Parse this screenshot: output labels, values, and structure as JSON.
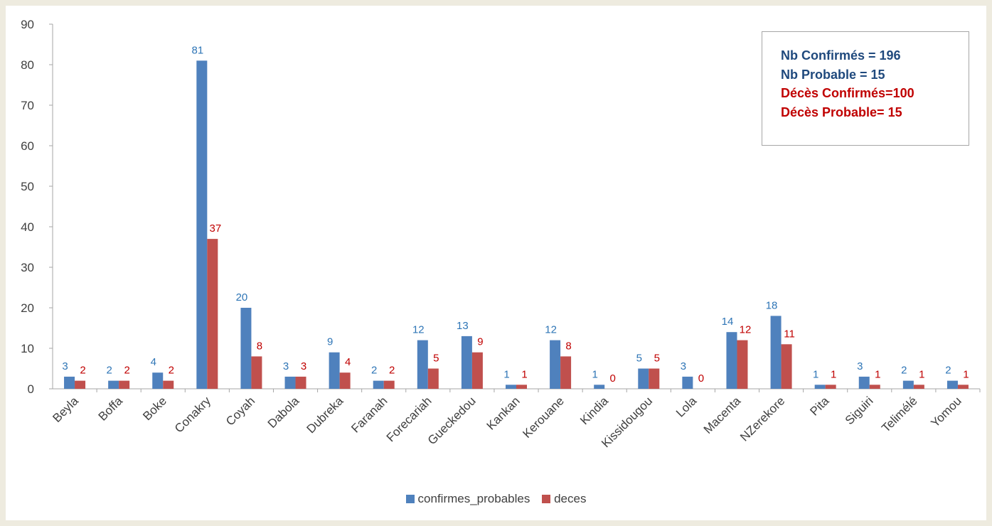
{
  "chart_data": {
    "type": "bar",
    "categories": [
      "Beyla",
      "Boffa",
      "Boke",
      "Conakry",
      "Coyah",
      "Dabola",
      "Dubreka",
      "Faranah",
      "Forecariah",
      "Gueckedou",
      "Kankan",
      "Kerouane",
      "Kindia",
      "Kissidougou",
      "Lola",
      "Macenta",
      "NZerekore",
      "Pita",
      "Siguiri",
      "Telimélé",
      "Yomou"
    ],
    "series": [
      {
        "name": "confirmes_probables",
        "color": "#4f81bd",
        "label_color": "#2e75b6",
        "values": [
          3,
          2,
          4,
          81,
          20,
          3,
          9,
          2,
          12,
          13,
          1,
          12,
          1,
          5,
          3,
          14,
          18,
          1,
          3,
          2,
          2
        ]
      },
      {
        "name": "deces",
        "color": "#c0504d",
        "label_color": "#c00000",
        "values": [
          2,
          2,
          2,
          37,
          8,
          3,
          4,
          2,
          5,
          9,
          1,
          8,
          0,
          5,
          0,
          12,
          11,
          1,
          1,
          1,
          1
        ]
      }
    ],
    "ylim": [
      0,
      90
    ],
    "yticks": [
      0,
      10,
      20,
      30,
      40,
      50,
      60,
      70,
      80,
      90
    ],
    "grid": false,
    "legend_position": "bottom",
    "data_labels": true
  },
  "stats_box": {
    "lines": [
      {
        "text": "Nb Confirmés = 196",
        "color": "#1f497d"
      },
      {
        "text": "Nb Probable = 15",
        "color": "#1f497d"
      },
      {
        "text": "Décès Confirmés=100",
        "color": "#c00000"
      },
      {
        "text": "Décès Probable= 15",
        "color": "#c00000"
      }
    ]
  }
}
